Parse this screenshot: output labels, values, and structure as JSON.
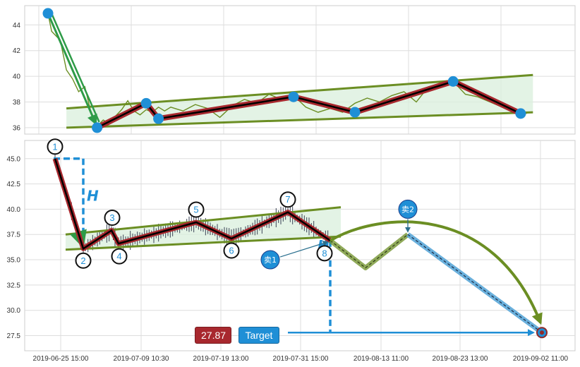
{
  "chart_data": [
    {
      "type": "line",
      "panel": "top",
      "ylim": [
        35.5,
        45.5
      ],
      "y_ticks": [
        "36",
        "38",
        "40",
        "42",
        "44"
      ],
      "price_line": [
        [
          0,
          44.9
        ],
        [
          0.3,
          43.5
        ],
        [
          1.0,
          42.8
        ],
        [
          1.5,
          40.5
        ],
        [
          2,
          39.8
        ],
        [
          2.5,
          38.8
        ],
        [
          3,
          39.2
        ],
        [
          3.5,
          37.2
        ],
        [
          4,
          36.1
        ],
        [
          4.5,
          36.6
        ],
        [
          5,
          36.3
        ],
        [
          5.5,
          36.9
        ],
        [
          6,
          37.4
        ],
        [
          6.5,
          38.1
        ],
        [
          7,
          37.3
        ],
        [
          7.5,
          37.0
        ],
        [
          8,
          37.4
        ],
        [
          8.5,
          37.2
        ],
        [
          9,
          37.6
        ],
        [
          9.5,
          37.3
        ],
        [
          10,
          37.6
        ],
        [
          11,
          37.3
        ],
        [
          12,
          37.8
        ],
        [
          13,
          37.5
        ],
        [
          14,
          36.8
        ],
        [
          15,
          37.7
        ],
        [
          16,
          38.2
        ],
        [
          17,
          37.9
        ],
        [
          18,
          38.6
        ],
        [
          19,
          38.2
        ],
        [
          20,
          38.5
        ],
        [
          21,
          37.6
        ],
        [
          22,
          37.2
        ],
        [
          23,
          37.5
        ],
        [
          24,
          37.2
        ],
        [
          25,
          37.9
        ],
        [
          26,
          38.3
        ],
        [
          27,
          38.0
        ],
        [
          28,
          38.5
        ],
        [
          29,
          38.8
        ],
        [
          30,
          38.0
        ],
        [
          31,
          39.2
        ],
        [
          32,
          39.4
        ],
        [
          33,
          39.6
        ],
        [
          34,
          38.6
        ],
        [
          35,
          38.4
        ],
        [
          36,
          38.0
        ],
        [
          37,
          37.6
        ],
        [
          38,
          37.3
        ],
        [
          39,
          37.1
        ]
      ],
      "pattern_points": [
        [
          0,
          44.9
        ],
        [
          4,
          36.0
        ],
        [
          8,
          37.9
        ],
        [
          9,
          36.7
        ],
        [
          20,
          38.4
        ],
        [
          25,
          37.2
        ],
        [
          33,
          39.6
        ],
        [
          38.5,
          37.1
        ]
      ],
      "channel_upper": [
        [
          1.5,
          37.5
        ],
        [
          39.5,
          40.1
        ]
      ],
      "channel_lower": [
        [
          1.5,
          36.0
        ],
        [
          39.5,
          37.2
        ]
      ]
    },
    {
      "type": "line",
      "panel": "bottom",
      "ylim": [
        26.0,
        46.8
      ],
      "y_ticks": [
        "27.5",
        "30.0",
        "32.5",
        "35.0",
        "37.5",
        "40.0",
        "42.5",
        "45.0"
      ],
      "x_ticks": [
        "2019-06-25 15:00",
        "2019-07-09 10:30",
        "2019-07-19 13:00",
        "2019-07-31 15:00",
        "2019-08-13 11:00",
        "2019-08-23 13:00",
        "2019-09-02 11:00"
      ],
      "pattern_points": [
        {
          "label": "1",
          "x": 0,
          "y": 45.0
        },
        {
          "label": "2",
          "x": 4,
          "y": 36.1
        },
        {
          "label": "3",
          "x": 8,
          "y": 37.9
        },
        {
          "label": "4",
          "x": 9,
          "y": 36.6
        },
        {
          "label": "5",
          "x": 20,
          "y": 38.7
        },
        {
          "label": "6",
          "x": 25,
          "y": 37.1
        },
        {
          "label": "7",
          "x": 33,
          "y": 39.7
        },
        {
          "label": "8",
          "x": 39,
          "y": 36.9
        }
      ],
      "forecast_path": [
        [
          39,
          36.9
        ],
        [
          44,
          34.2
        ],
        [
          50,
          37.5
        ],
        [
          69,
          27.8
        ]
      ],
      "forecast_arc": [
        [
          39,
          36.9
        ],
        [
          50,
          38.0
        ],
        [
          69,
          27.8
        ]
      ],
      "channel_upper": [
        [
          1.5,
          37.5
        ],
        [
          40.5,
          40.2
        ]
      ],
      "channel_lower": [
        [
          1.5,
          36.0
        ],
        [
          40.5,
          37.3
        ]
      ],
      "h_marker_1": {
        "x": 4,
        "y_from": 45.0,
        "y_to": 36.1,
        "label": "H"
      },
      "h_marker_2": {
        "x": 39,
        "y_from": 36.9,
        "y_to": 27.8,
        "label": "H"
      },
      "signals": [
        {
          "label": "卖1",
          "x": 30.5,
          "y": 35.0,
          "arrow_to": [
            39,
            36.9
          ]
        },
        {
          "label": "卖2",
          "x": 50,
          "y": 40.0,
          "arrow_to": [
            50,
            37.5
          ]
        }
      ],
      "target": {
        "price": "27.87",
        "label": "Target",
        "x": 69,
        "y": 27.8
      }
    }
  ],
  "colors": {
    "price_line": "#6b8e23",
    "channel": "#6b8e23",
    "channel_fill": "#d9efdc",
    "pattern_outer": "#a8282e",
    "pattern_inner": "#000000",
    "point": "#1f8fd6",
    "accent_blue": "#1f8fd6",
    "target_price_bg": "#a8282e",
    "target_label_bg": "#1f8fd6"
  }
}
